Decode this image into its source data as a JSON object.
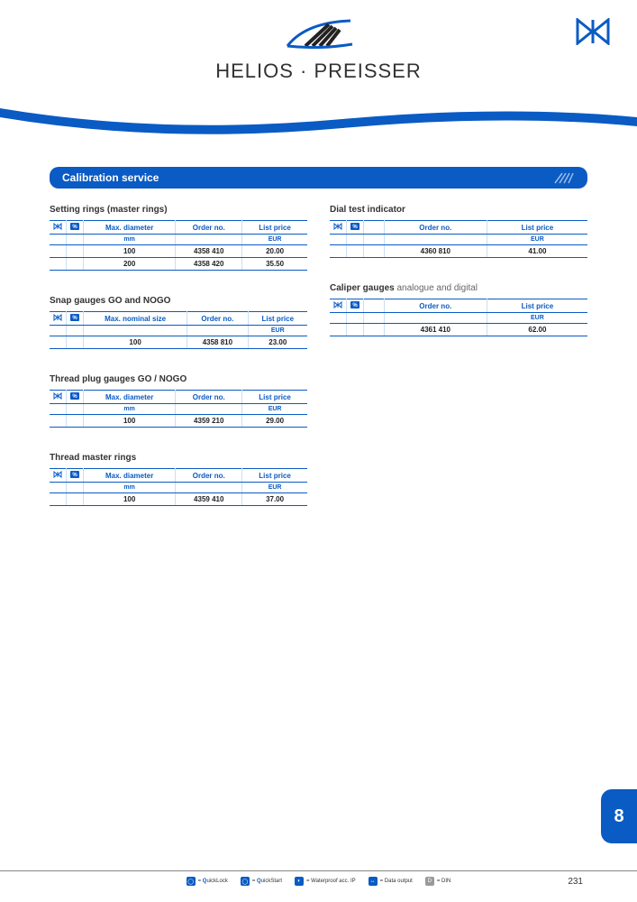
{
  "brand": {
    "name": "HELIOS · PREISSER"
  },
  "colors": {
    "primary": "#0a5bc4",
    "text": "#333333"
  },
  "section_title": "Calibration service",
  "page_number": "231",
  "section_number": "8",
  "legend": [
    {
      "key": "ql",
      "label": " = QuickLock",
      "hl": "Q"
    },
    {
      "key": "qs",
      "label": " = QuickStart",
      "hl": "Q"
    },
    {
      "key": "wp",
      "label": " = Waterproof acc. IP"
    },
    {
      "key": "do",
      "label": " = Data output"
    },
    {
      "key": "din",
      "label": " = DIN"
    }
  ],
  "tables": {
    "setting_rings": {
      "title": "Setting rings (master rings)",
      "headers": [
        "Max. diameter",
        "Order no.",
        "List price"
      ],
      "subheaders": [
        "mm",
        "",
        "EUR"
      ],
      "rows": [
        [
          "100",
          "4358 410",
          "20.00"
        ],
        [
          "200",
          "4358 420",
          "35.50"
        ]
      ]
    },
    "snap_gauges": {
      "title": "Snap gauges GO and NOGO",
      "headers": [
        "Max. nominal size",
        "Order no.",
        "List price"
      ],
      "subheaders": [
        "",
        "",
        "EUR"
      ],
      "rows": [
        [
          "100",
          "4358 810",
          "23.00"
        ]
      ]
    },
    "thread_plug": {
      "title": "Thread plug gauges GO / NOGO",
      "headers": [
        "Max. diameter",
        "Order no.",
        "List price"
      ],
      "subheaders": [
        "mm",
        "",
        "EUR"
      ],
      "rows": [
        [
          "100",
          "4359 210",
          "29.00"
        ]
      ]
    },
    "thread_master": {
      "title": "Thread master rings",
      "headers": [
        "Max. diameter",
        "Order no.",
        "List price"
      ],
      "subheaders": [
        "mm",
        "",
        "EUR"
      ],
      "rows": [
        [
          "100",
          "4359 410",
          "37.00"
        ]
      ]
    },
    "dial_test": {
      "title": "Dial test indicator",
      "headers": [
        "",
        "Order no.",
        "List price"
      ],
      "subheaders": [
        "",
        "",
        "EUR"
      ],
      "rows": [
        [
          "",
          "4360 810",
          "41.00"
        ]
      ]
    },
    "caliper_gauges": {
      "title": "Caliper gauges",
      "title_sub": " analogue and digital",
      "headers": [
        "",
        "Order no.",
        "List price"
      ],
      "subheaders": [
        "",
        "",
        "EUR"
      ],
      "rows": [
        [
          "",
          "4361 410",
          "62.00"
        ]
      ]
    }
  }
}
